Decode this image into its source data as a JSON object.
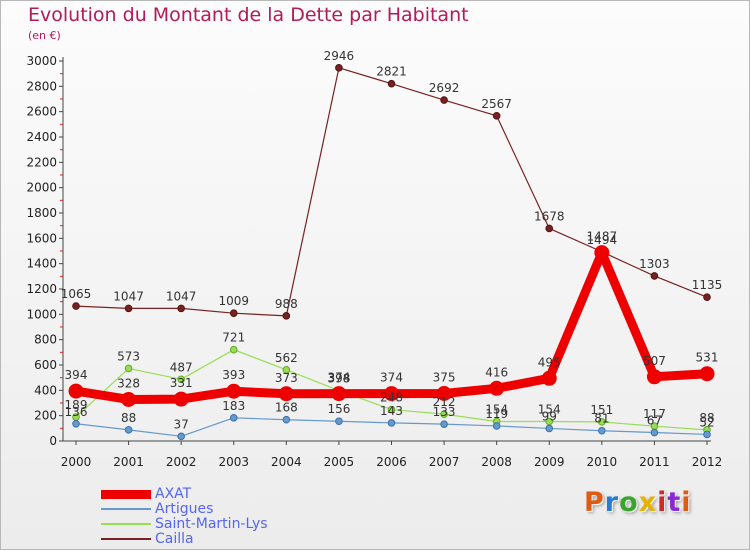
{
  "title": "Evolution du Montant de la Dette par Habitant",
  "unit": "(en €)",
  "logo": "Proxiti",
  "logo_colors": [
    "#e05a10",
    "#2a7bd0",
    "#3aa52e",
    "#e8b000",
    "#d02828",
    "#8a2ad0",
    "#e05a10"
  ],
  "chart_data": {
    "type": "line",
    "title": "Evolution du Montant de la Dette par Habitant",
    "subtitle": "(en €)",
    "xlabel": "",
    "ylabel": "",
    "categories": [
      "2000",
      "2001",
      "2002",
      "2003",
      "2004",
      "2005",
      "2006",
      "2007",
      "2008",
      "2009",
      "2010",
      "2011",
      "2012"
    ],
    "ylim": [
      0,
      3000
    ],
    "yticks": [
      0,
      200,
      400,
      600,
      800,
      1000,
      1200,
      1400,
      1600,
      1800,
      2000,
      2200,
      2400,
      2600,
      2800,
      3000
    ],
    "grid": false,
    "legend_position": "bottom-left",
    "series": [
      {
        "name": "AXAT",
        "color": "#ee0000",
        "values": [
          394,
          328,
          331,
          393,
          373,
          374,
          374,
          375,
          416,
          495,
          1487,
          507,
          531
        ],
        "labels": [
          "394",
          "328",
          "331",
          "393",
          "373",
          "374",
          "374",
          "375",
          "416",
          "495",
          "1487",
          "507",
          "531"
        ]
      },
      {
        "name": "Artigues",
        "color": "#6699cc",
        "values": [
          136,
          88,
          37,
          183,
          168,
          156,
          143,
          133,
          119,
          99,
          81,
          67,
          52
        ],
        "labels": [
          "136",
          "88",
          "37",
          "183",
          "168",
          "156",
          "143",
          "133",
          "119",
          "99",
          "81",
          "67",
          "52"
        ]
      },
      {
        "name": "Saint-Martin-Lys",
        "color": "#99dd55",
        "values": [
          189,
          573,
          487,
          721,
          562,
          398,
          248,
          212,
          154,
          154,
          151,
          117,
          88
        ],
        "labels": [
          "189",
          "573",
          "487",
          "721",
          "562",
          "398",
          "248",
          "212",
          "154",
          "154",
          "151",
          "117",
          "88"
        ]
      },
      {
        "name": "Cailla",
        "color": "#772222",
        "values": [
          1065,
          1047,
          1047,
          1009,
          988,
          2946,
          2821,
          2692,
          2567,
          1678,
          1494,
          1303,
          1135
        ],
        "labels": [
          "1065",
          "1047",
          "1047",
          "1009",
          "988",
          "2946",
          "2821",
          "2692",
          "2567",
          "1678",
          "1494",
          "1303",
          "1135"
        ]
      }
    ]
  }
}
